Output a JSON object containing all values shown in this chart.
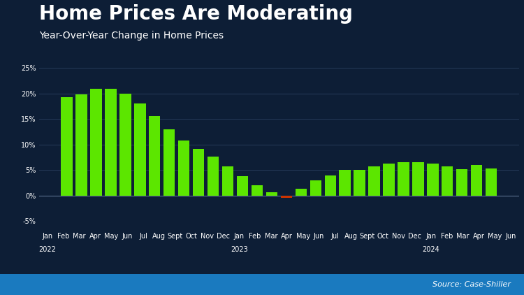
{
  "title": "Home Prices Are Moderating",
  "subtitle": "Year-Over-Year Change in Home Prices",
  "source": "Source: Case-Shiller",
  "labels": [
    "Jan",
    "Feb",
    "Mar",
    "Apr",
    "May",
    "Jun",
    "Jul",
    "Aug",
    "Sept",
    "Oct",
    "Nov",
    "Dec",
    "Jan",
    "Feb",
    "Mar",
    "Apr",
    "May",
    "Jun",
    "Jul",
    "Aug",
    "Sept",
    "Oct",
    "Nov",
    "Dec",
    "Jan",
    "Feb",
    "Mar",
    "Apr",
    "May",
    "Jun"
  ],
  "year_labels": {
    "0": "2022",
    "12": "2023",
    "24": "2024"
  },
  "values": [
    19.2,
    19.8,
    20.9,
    20.9,
    20.0,
    18.0,
    15.6,
    13.0,
    10.8,
    9.2,
    7.6,
    5.8,
    3.8,
    2.0,
    0.7,
    -0.4,
    1.3,
    3.0,
    4.0,
    5.0,
    5.0,
    5.8,
    6.3,
    6.5,
    6.5,
    6.3,
    5.8,
    5.2,
    6.0,
    5.3
  ],
  "bar_color_positive": "#5ce600",
  "bar_color_negative": "#cc3300",
  "background_color": "#0d1e36",
  "text_color": "#ffffff",
  "grid_color": "#2a3f5f",
  "ylim": [
    -5,
    25
  ],
  "yticks": [
    -5,
    0,
    5,
    10,
    15,
    20,
    25
  ],
  "title_fontsize": 20,
  "subtitle_fontsize": 10,
  "source_fontsize": 8,
  "tick_fontsize": 7,
  "footer_color": "#1a7abf"
}
